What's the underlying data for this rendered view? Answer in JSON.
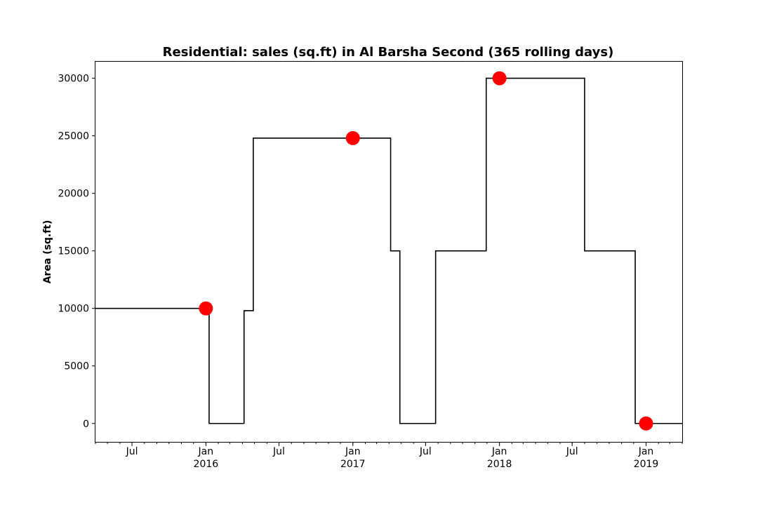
{
  "chart_data": {
    "type": "line",
    "title": "Residential: sales (sq.ft) in Al Barsha Second (365 rolling days)",
    "xlabel": "",
    "ylabel": "Area (sq.ft)",
    "x_range": [
      "2015-04-01",
      "2019-04-01"
    ],
    "ylim": [
      -1600,
      31500
    ],
    "y_ticks": [
      0,
      5000,
      10000,
      15000,
      20000,
      25000,
      30000
    ],
    "x_ticks": [
      {
        "date": "2015-07-01",
        "label": "Jul",
        "year": ""
      },
      {
        "date": "2016-01-01",
        "label": "Jan",
        "year": "2016"
      },
      {
        "date": "2016-07-01",
        "label": "Jul",
        "year": ""
      },
      {
        "date": "2017-01-01",
        "label": "Jan",
        "year": "2017"
      },
      {
        "date": "2017-07-01",
        "label": "Jul",
        "year": ""
      },
      {
        "date": "2018-01-01",
        "label": "Jan",
        "year": "2018"
      },
      {
        "date": "2018-07-01",
        "label": "Jul",
        "year": ""
      },
      {
        "date": "2019-01-01",
        "label": "Jan",
        "year": "2019"
      }
    ],
    "grid": false,
    "series": [
      {
        "line_style": "step",
        "color": "#000000",
        "points": [
          {
            "x": "2015-04-01",
            "y": 10000
          },
          {
            "x": "2016-01-09",
            "y": 0
          },
          {
            "x": "2016-04-05",
            "y": 9800
          },
          {
            "x": "2016-04-28",
            "y": 24800
          },
          {
            "x": "2017-04-05",
            "y": 15000
          },
          {
            "x": "2017-04-28",
            "y": 0
          },
          {
            "x": "2017-07-26",
            "y": 15000
          },
          {
            "x": "2017-11-29",
            "y": 30000
          },
          {
            "x": "2018-08-01",
            "y": 15000
          },
          {
            "x": "2018-12-05",
            "y": 0
          },
          {
            "x": "2019-04-01",
            "y": 0
          }
        ]
      }
    ],
    "markers": {
      "color": "#ff0000",
      "points": [
        {
          "x": "2016-01-01",
          "y": 10000
        },
        {
          "x": "2017-01-01",
          "y": 24800
        },
        {
          "x": "2018-01-01",
          "y": 30000
        },
        {
          "x": "2019-01-01",
          "y": 0
        }
      ]
    }
  }
}
